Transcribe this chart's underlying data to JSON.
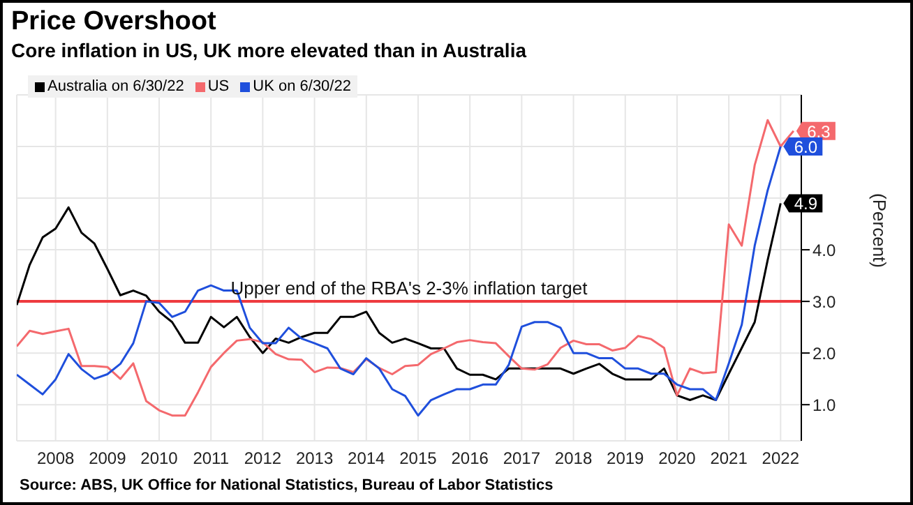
{
  "chart_data": {
    "type": "line",
    "title": "Price Overshoot",
    "subtitle": "Core inflation in US, UK more elevated than in Australia",
    "ylabel": "(Percent)",
    "x": [
      2007.75,
      2008,
      2008.25,
      2008.5,
      2008.75,
      2009,
      2009.25,
      2009.5,
      2009.75,
      2010,
      2010.25,
      2010.5,
      2010.75,
      2011,
      2011.25,
      2011.5,
      2011.75,
      2012,
      2012.25,
      2012.5,
      2012.75,
      2013,
      2013.25,
      2013.5,
      2013.75,
      2014,
      2014.25,
      2014.5,
      2014.75,
      2015,
      2015.25,
      2015.5,
      2015.75,
      2016,
      2016.25,
      2016.5,
      2016.75,
      2017,
      2017.25,
      2017.5,
      2017.75,
      2018,
      2018.25,
      2018.5,
      2018.75,
      2019,
      2019.25,
      2019.5,
      2019.75,
      2020,
      2020.25,
      2020.5,
      2020.75,
      2021,
      2021.25,
      2021.5,
      2021.75,
      2022,
      2022.25,
      2022.5
    ],
    "series": [
      {
        "name": "Australia on 6/30/22",
        "color": "#000000",
        "values": [
          2.93,
          3.71,
          4.24,
          4.41,
          4.82,
          4.33,
          4.12,
          3.63,
          3.12,
          3.21,
          3.11,
          2.8,
          2.6,
          2.2,
          2.2,
          2.7,
          2.5,
          2.7,
          2.31,
          2.0,
          2.28,
          2.2,
          2.31,
          2.39,
          2.39,
          2.7,
          2.7,
          2.8,
          2.39,
          2.2,
          2.28,
          2.19,
          2.09,
          2.09,
          1.7,
          1.58,
          1.58,
          1.49,
          1.7,
          1.7,
          1.7,
          1.7,
          1.7,
          1.6,
          1.7,
          1.79,
          1.6,
          1.49,
          1.49,
          1.49,
          1.7,
          1.18,
          1.09,
          1.18,
          1.09,
          1.6,
          2.1,
          2.6,
          3.8,
          4.9
        ],
        "value_labels": [
          null,
          null,
          null,
          null,
          null,
          null,
          null,
          null,
          null,
          null,
          null,
          null,
          null,
          null,
          null,
          null,
          null,
          null,
          null,
          null,
          null,
          null,
          null,
          null,
          null,
          null,
          null,
          null,
          null,
          null,
          null,
          null,
          null,
          null,
          null,
          null,
          null,
          null,
          null,
          null,
          null,
          null,
          null,
          null,
          null,
          null,
          null,
          null,
          null,
          null,
          null,
          null,
          null,
          null,
          null,
          null,
          null,
          null,
          null,
          "4.9"
        ]
      },
      {
        "name": "US",
        "color": "#f4696d",
        "x": [
          2007.75,
          2008,
          2008.25,
          2008.5,
          2008.75,
          2009,
          2009.25,
          2009.5,
          2009.75,
          2010,
          2010.25,
          2010.5,
          2010.75,
          2011,
          2011.25,
          2011.5,
          2011.75,
          2012,
          2012.25,
          2012.5,
          2012.75,
          2013,
          2013.25,
          2013.5,
          2013.75,
          2014,
          2014.25,
          2014.5,
          2014.75,
          2015,
          2015.25,
          2015.5,
          2015.75,
          2016,
          2016.25,
          2016.5,
          2016.75,
          2017,
          2017.25,
          2017.5,
          2017.75,
          2018,
          2018.25,
          2018.5,
          2018.75,
          2019,
          2019.25,
          2019.5,
          2019.75,
          2020,
          2020.25,
          2020.5,
          2020.75,
          2021,
          2021.25,
          2021.5,
          2021.75,
          2022,
          2022.25,
          2022.5,
          2022.75
        ],
        "values": [
          2.13,
          2.43,
          2.37,
          2.42,
          2.47,
          1.75,
          1.75,
          1.73,
          1.5,
          1.8,
          1.07,
          0.89,
          0.79,
          0.79,
          1.24,
          1.73,
          2.0,
          2.24,
          2.27,
          2.21,
          1.98,
          1.88,
          1.87,
          1.63,
          1.72,
          1.71,
          1.63,
          1.88,
          1.71,
          1.59,
          1.75,
          1.77,
          1.98,
          2.09,
          2.21,
          2.25,
          2.21,
          2.19,
          1.94,
          1.7,
          1.68,
          1.78,
          2.1,
          2.24,
          2.17,
          2.17,
          2.05,
          2.1,
          2.33,
          2.27,
          2.1,
          1.18,
          1.7,
          1.61,
          1.63,
          4.49,
          4.08,
          5.64,
          6.51,
          6.0,
          6.3
        ],
        "value_labels": [
          null,
          null,
          null,
          null,
          null,
          null,
          null,
          null,
          null,
          null,
          null,
          null,
          null,
          null,
          null,
          null,
          null,
          null,
          null,
          null,
          null,
          null,
          null,
          null,
          null,
          null,
          null,
          null,
          null,
          null,
          null,
          null,
          null,
          null,
          null,
          null,
          null,
          null,
          null,
          null,
          null,
          null,
          null,
          null,
          null,
          null,
          null,
          null,
          null,
          null,
          null,
          null,
          null,
          null,
          null,
          null,
          null,
          null,
          null,
          null,
          "6.3"
        ]
      },
      {
        "name": "UK on 6/30/22",
        "color": "#1f4fdc",
        "values": [
          1.58,
          1.39,
          1.2,
          1.49,
          1.98,
          1.69,
          1.5,
          1.59,
          1.79,
          2.19,
          3.0,
          2.97,
          2.7,
          2.8,
          3.21,
          3.31,
          3.21,
          3.21,
          2.49,
          2.19,
          2.19,
          2.49,
          2.28,
          2.19,
          2.09,
          1.7,
          1.59,
          1.9,
          1.7,
          1.3,
          1.17,
          0.79,
          1.09,
          1.2,
          1.3,
          1.3,
          1.39,
          1.39,
          1.77,
          2.51,
          2.6,
          2.6,
          2.49,
          2.0,
          2.0,
          1.9,
          1.9,
          1.7,
          1.7,
          1.6,
          1.6,
          1.39,
          1.3,
          1.3,
          1.09,
          1.8,
          2.55,
          4.08,
          5.15,
          6.0
        ],
        "value_labels": [
          null,
          null,
          null,
          null,
          null,
          null,
          null,
          null,
          null,
          null,
          null,
          null,
          null,
          null,
          null,
          null,
          null,
          null,
          null,
          null,
          null,
          null,
          null,
          null,
          null,
          null,
          null,
          null,
          null,
          null,
          null,
          null,
          null,
          null,
          null,
          null,
          null,
          null,
          null,
          null,
          null,
          null,
          null,
          null,
          null,
          null,
          null,
          null,
          null,
          null,
          null,
          null,
          null,
          null,
          null,
          null,
          null,
          null,
          null,
          "6.0"
        ]
      }
    ],
    "xlim": [
      2007.75,
      2022.9
    ],
    "xticks": [
      {
        "value": 2008.5,
        "label": "2008"
      },
      {
        "value": 2009.5,
        "label": "2009"
      },
      {
        "value": 2010.5,
        "label": "2010"
      },
      {
        "value": 2011.5,
        "label": "2011"
      },
      {
        "value": 2012.5,
        "label": "2012"
      },
      {
        "value": 2013.5,
        "label": "2013"
      },
      {
        "value": 2014.5,
        "label": "2014"
      },
      {
        "value": 2015.5,
        "label": "2015"
      },
      {
        "value": 2016.5,
        "label": "2016"
      },
      {
        "value": 2017.5,
        "label": "2017"
      },
      {
        "value": 2018.5,
        "label": "2018"
      },
      {
        "value": 2019.5,
        "label": "2019"
      },
      {
        "value": 2020.5,
        "label": "2020"
      },
      {
        "value": 2021.5,
        "label": "2021"
      },
      {
        "value": 2022.5,
        "label": "2022"
      }
    ],
    "ylim": [
      0.3,
      7.0
    ],
    "yticks": [
      {
        "value": 1,
        "label": "1.0"
      },
      {
        "value": 2,
        "label": "2.0"
      },
      {
        "value": 3,
        "label": "3.0"
      },
      {
        "value": 4,
        "label": "4.0"
      },
      {
        "value": 5,
        "label": null
      },
      {
        "value": 6,
        "label": null
      }
    ],
    "ref_lines": [
      {
        "axis": "y",
        "value": 3,
        "label": "Upper end of the RBA's 2-3% inflation target",
        "color": "#ee3b3f"
      }
    ],
    "grid": true,
    "legend": "top left",
    "marker": "none",
    "line_style": "solid",
    "annotations": [
      "Source: ABS, UK Office for National Statistics, Bureau of Labor Statistics"
    ]
  }
}
